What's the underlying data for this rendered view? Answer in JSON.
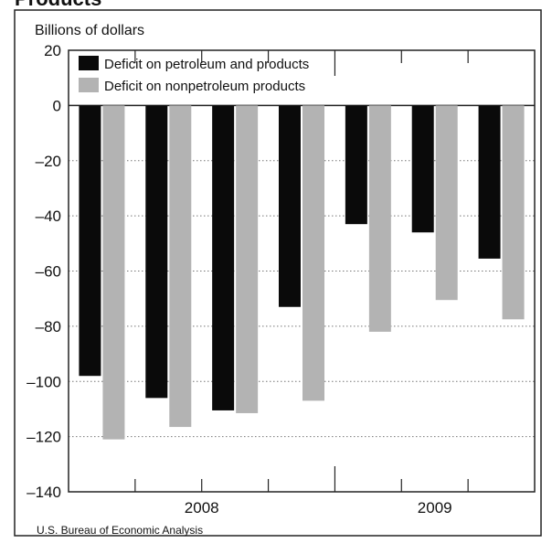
{
  "page": {
    "cut_title": "Products",
    "source_note": "U.S. Bureau of Economic Analysis"
  },
  "chart_data": {
    "type": "bar",
    "ylabel": "Billions of dollars",
    "ylim": [
      -140,
      20
    ],
    "yticks": [
      20,
      0,
      -20,
      -40,
      -60,
      -80,
      -100,
      -120,
      -140
    ],
    "ytick_labels": [
      "20",
      "0",
      "–20",
      "–40",
      "–60",
      "–80",
      "–100",
      "–120",
      "–140"
    ],
    "grid": "dotted horizontal",
    "legend_position": "top-left",
    "groups": [
      {
        "label": "2008",
        "quarters": 4
      },
      {
        "label": "2009",
        "quarters": 3
      }
    ],
    "series": [
      {
        "name": "Deficit on petroleum and products",
        "color": "#0a0a0a",
        "values": [
          -98,
          -106,
          -110.5,
          -73,
          -43,
          -46,
          -55.5
        ]
      },
      {
        "name": "Deficit on nonpetroleum products",
        "color": "#b3b3b3",
        "values": [
          -121,
          -116.5,
          -111.5,
          -107,
          -82,
          -70.5,
          -77.5
        ]
      }
    ]
  }
}
